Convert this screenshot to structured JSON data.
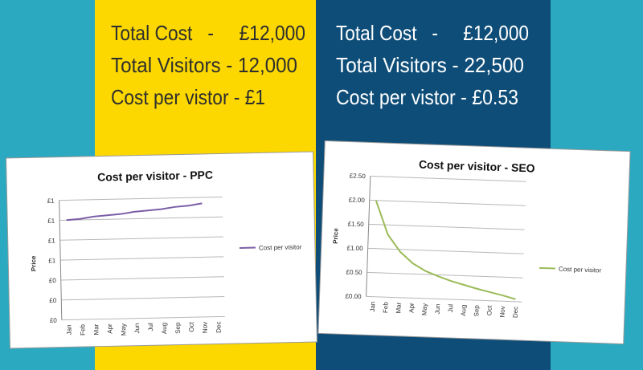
{
  "panels": [
    {
      "lines": [
        "Total Cost   -     £12,000",
        "Total Visitors - 12,000",
        "Cost per vistor - £1"
      ]
    },
    {
      "lines": [
        "Total Cost   -     £12,000",
        "Total Visitors - 22,500",
        "Cost per vistor - £0.53"
      ]
    }
  ],
  "chart_data": [
    {
      "type": "line",
      "title": "Cost per visitor - PPC",
      "y_label": "Price",
      "categories": [
        "Jan",
        "Feb",
        "Mar",
        "Apr",
        "May",
        "Jun",
        "Jul",
        "Aug",
        "Sep",
        "Oct",
        "Nov",
        "Dec"
      ],
      "series": [
        {
          "name": "Cost per visitor",
          "color": "#7b5ea7",
          "values": [
            1.0,
            1.01,
            1.03,
            1.04,
            1.05,
            1.07,
            1.08,
            1.09,
            1.11,
            1.12,
            1.14,
            null
          ]
        }
      ],
      "ylim": [
        0,
        1.2
      ],
      "yticks": [
        {
          "value": 0,
          "label": "£0"
        },
        {
          "value": 0.2,
          "label": "£0"
        },
        {
          "value": 0.4,
          "label": "£0"
        },
        {
          "value": 0.6,
          "label": "£1"
        },
        {
          "value": 0.8,
          "label": "£1"
        },
        {
          "value": 1.0,
          "label": "£1"
        },
        {
          "value": 1.2,
          "label": "£1"
        }
      ],
      "grid": true,
      "legend": "right"
    },
    {
      "type": "line",
      "title": "Cost per visitor - SEO",
      "y_label": "Price",
      "categories": [
        "Jan",
        "Feb",
        "Mar",
        "Apr",
        "May",
        "Jun",
        "Jul",
        "Aug",
        "Sep",
        "Oct",
        "Nov",
        "Dec"
      ],
      "series": [
        {
          "name": "Cost per visitor",
          "color": "#9bbb59",
          "values": [
            2.0,
            1.3,
            0.95,
            0.72,
            0.57,
            0.47,
            0.38,
            0.31,
            0.24,
            0.18,
            0.12,
            0.05
          ]
        }
      ],
      "ylim": [
        0,
        2.5
      ],
      "yticks": [
        {
          "value": 0,
          "label": "£0.00"
        },
        {
          "value": 0.5,
          "label": "£0.50"
        },
        {
          "value": 1.0,
          "label": "£1.00"
        },
        {
          "value": 1.5,
          "label": "£1.50"
        },
        {
          "value": 2.0,
          "label": "£2.00"
        },
        {
          "value": 2.5,
          "label": "£2.50"
        }
      ],
      "grid": true,
      "legend": "right"
    }
  ]
}
